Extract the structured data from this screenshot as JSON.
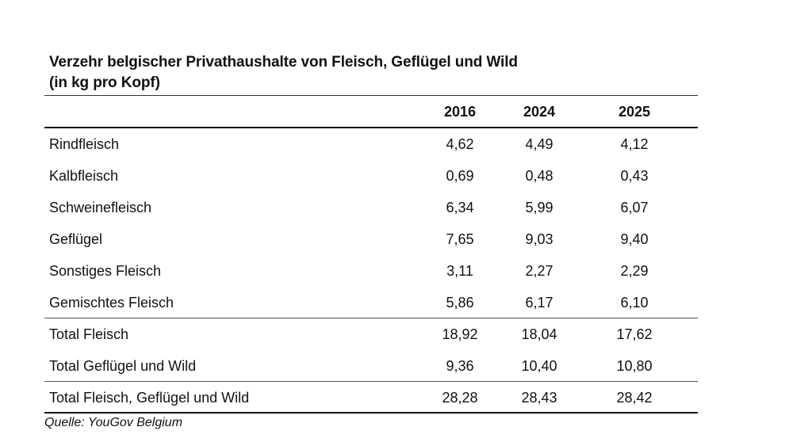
{
  "title": {
    "line1": "Verzehr belgischer Privathaushalte von Fleisch, Geflügel und Wild",
    "line2": "(in kg pro Kopf)"
  },
  "table": {
    "columns": [
      "2016",
      "2024",
      "2025"
    ],
    "rows": [
      {
        "label": "Rindfleisch",
        "values": [
          "4,62",
          "4,49",
          "4,12"
        ]
      },
      {
        "label": "Kalbfleisch",
        "values": [
          "0,69",
          "0,48",
          "0,43"
        ]
      },
      {
        "label": "Schweinefleisch",
        "values": [
          "6,34",
          "5,99",
          "6,07"
        ]
      },
      {
        "label": "Geflügel",
        "values": [
          "7,65",
          "9,03",
          "9,40"
        ]
      },
      {
        "label": "Sonstiges Fleisch",
        "values": [
          "3,11",
          "2,27",
          "2,29"
        ]
      },
      {
        "label": "Gemischtes Fleisch",
        "values": [
          "5,86",
          "6,17",
          "6,10"
        ]
      },
      {
        "label": "Total Fleisch",
        "values": [
          "18,92",
          "18,04",
          "17,62"
        ]
      },
      {
        "label": "Total Geflügel und Wild",
        "values": [
          "9,36",
          "10,40",
          "10,80"
        ]
      },
      {
        "label": "Total Fleisch, Geflügel und Wild",
        "values": [
          "28,28",
          "28,43",
          "28,42"
        ]
      }
    ]
  },
  "source": "Quelle: YouGov Belgium"
}
